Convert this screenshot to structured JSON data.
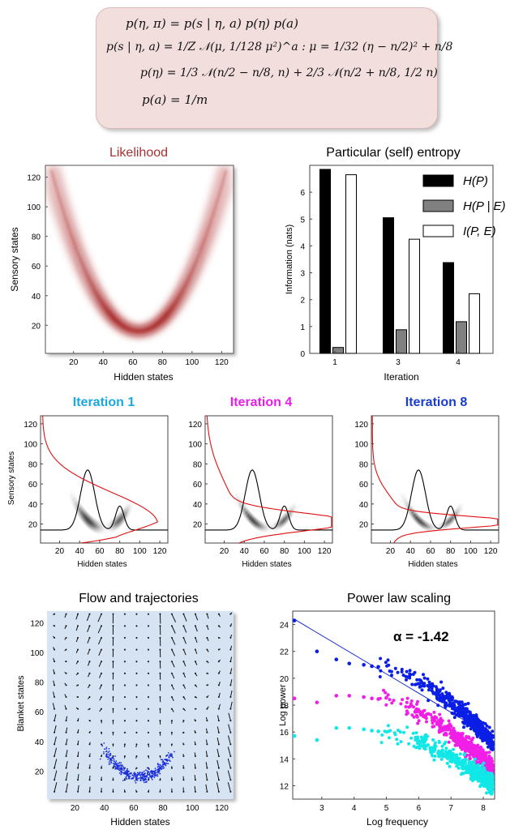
{
  "formulas": {
    "line1": "p(η, π) = p(s | η, a) p(η) p(a)",
    "line2": "p(s | η, a) = 1/Z 𝒩(μ, 1/128 μ²)^a : μ = 1/32 (η − n/2)² + n/8",
    "line3": "p(η) = 1/3 𝒩(n/2 − n/8, n) + 2/3 𝒩(n/2 + n/8, 1/2 n)",
    "line4": "p(a) = 1/m"
  },
  "colors": {
    "likelihood_title": "#a83232",
    "iteration_1": "#1aa8e0",
    "iteration_4": "#e61ee6",
    "iteration_8": "#1a3ccc",
    "flow_background": "#d6e3f3",
    "trajectory": "#1a2fd8",
    "series_blue": "#0a1ee6",
    "series_magenta": "#f01ee6",
    "series_cyan": "#10e8e8"
  },
  "chart_data": [
    {
      "id": "likelihood",
      "type": "heatmap",
      "title": "Likelihood",
      "xlabel": "Hidden states",
      "ylabel": "Sensory states",
      "xticks": [
        20,
        40,
        60,
        80,
        100,
        120
      ],
      "yticks": [
        20,
        40,
        60,
        80,
        100,
        120
      ],
      "xlim": [
        1,
        128
      ],
      "ylim": [
        1,
        128
      ],
      "colormap": "white-to-dark-red",
      "mean_curve": "mu = (x - 64)^2 / 32 + 16"
    },
    {
      "id": "entropy",
      "type": "bar",
      "title": "Particular (self) entropy",
      "xlabel": "Iteration",
      "ylabel": "Information (nats)",
      "categories": [
        "1",
        "3",
        "4"
      ],
      "ylim": [
        0,
        7
      ],
      "yticks": [
        0,
        1,
        2,
        3,
        4,
        5,
        6
      ],
      "legend_position": "top-right",
      "series": [
        {
          "name": "H(P)",
          "color": "#000000",
          "values": [
            6.85,
            5.05,
            3.38
          ]
        },
        {
          "name": "H(P | E)",
          "color": "#808080",
          "values": [
            0.22,
            0.88,
            1.18
          ]
        },
        {
          "name": "I(P, E)",
          "color": "#ffffff",
          "values": [
            6.65,
            4.25,
            2.22
          ]
        }
      ]
    },
    {
      "id": "iter1",
      "type": "heatmap",
      "title": "Iteration 1",
      "xlabel": "Hidden states",
      "ylabel": "Sensory states",
      "xticks": [
        20,
        40,
        60,
        80,
        100,
        120
      ],
      "yticks": [
        20,
        40,
        60,
        80,
        100,
        120
      ],
      "xlim": [
        1,
        128
      ],
      "ylim": [
        1,
        128
      ],
      "hidden_density_peaks": [
        48,
        80
      ],
      "sensory_density_spread": 30
    },
    {
      "id": "iter4",
      "type": "heatmap",
      "title": "Iteration 4",
      "xlabel": "Hidden states",
      "ylabel": "",
      "xticks": [
        20,
        40,
        60,
        80,
        100,
        120
      ],
      "yticks": [
        20,
        40,
        60,
        80,
        100,
        120
      ],
      "xlim": [
        1,
        128
      ],
      "ylim": [
        1,
        128
      ],
      "hidden_density_peaks": [
        48,
        80
      ],
      "sensory_density_spread": 16
    },
    {
      "id": "iter8",
      "type": "heatmap",
      "title": "Iteration 8",
      "xlabel": "Hidden states",
      "ylabel": "",
      "xticks": [
        20,
        40,
        60,
        80,
        100,
        120
      ],
      "yticks": [
        20,
        40,
        60,
        80,
        100,
        120
      ],
      "xlim": [
        1,
        128
      ],
      "ylim": [
        1,
        128
      ],
      "hidden_density_peaks": [
        48,
        80
      ],
      "sensory_density_spread": 10
    },
    {
      "id": "flow",
      "type": "scatter",
      "title": "Flow and trajectories",
      "xlabel": "Hidden states",
      "ylabel": "Blanket states",
      "xticks": [
        20,
        40,
        60,
        80,
        100,
        120
      ],
      "yticks": [
        20,
        40,
        60,
        80,
        100,
        120
      ],
      "xlim": [
        1,
        128
      ],
      "ylim": [
        1,
        128
      ],
      "grid_spacing": 8,
      "trajectory_curve": "y = (x - 64)^2 / 32 + 16",
      "trajectory_x_range": [
        40,
        86
      ]
    },
    {
      "id": "power",
      "type": "scatter",
      "title": "Power law scaling",
      "xlabel": "Log frequency",
      "ylabel": "Log power",
      "annotation": "α = -1.42",
      "xticks": [
        3,
        4,
        5,
        6,
        7,
        8
      ],
      "yticks": [
        12,
        14,
        16,
        18,
        20,
        22,
        24
      ],
      "xlim": [
        2.1,
        8.35
      ],
      "ylim": [
        11,
        25
      ],
      "fit_line": {
        "x": [
          2.15,
          8.3
        ],
        "y": [
          24.4,
          15.6
        ]
      },
      "series": [
        {
          "color": "#0a1ee6",
          "first_point": [
            2.15,
            24.3
          ],
          "y_at_5": 20.8,
          "y_at_end": 15.2
        },
        {
          "color": "#f01ee6",
          "first_point": [
            2.15,
            18.5
          ],
          "y_at_5": 18.4,
          "y_at_end": 13.2
        },
        {
          "color": "#10e8e8",
          "first_point": [
            2.15,
            15.7
          ],
          "y_at_5": 16.0,
          "y_at_end": 12.0
        }
      ]
    }
  ]
}
